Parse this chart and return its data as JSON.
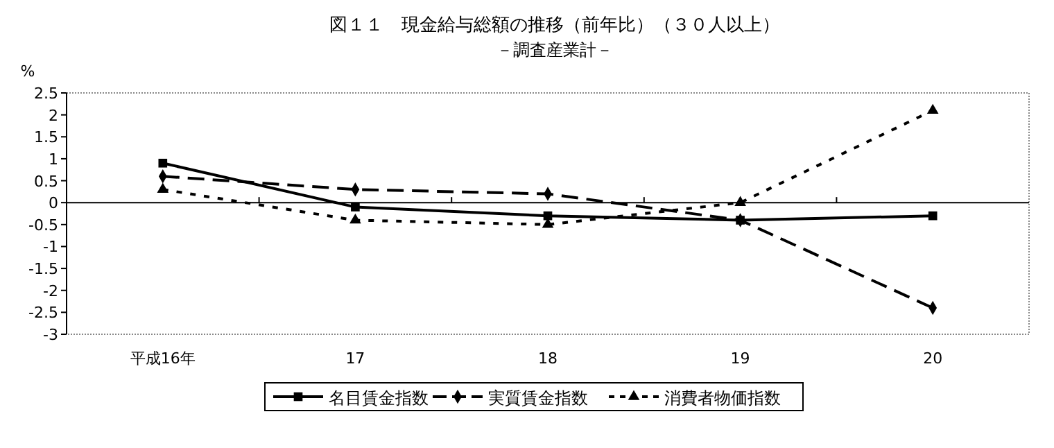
{
  "chart_data": {
    "type": "line",
    "title": "図１１　現金給与総額の推移（前年比）（３０人以上）",
    "subtitle": "－調査産業計－",
    "ylabel": "%",
    "categories": [
      "平成16年",
      "17",
      "18",
      "19",
      "20"
    ],
    "series": [
      {
        "name": "名目賃金指数",
        "color": "#000000",
        "values": [
          0.9,
          -0.1,
          -0.3,
          -0.4,
          -0.3
        ],
        "marker": "square",
        "line_style": "solid"
      },
      {
        "name": "実質賃金指数",
        "color": "#000000",
        "values": [
          0.6,
          0.3,
          0.2,
          -0.4,
          -2.4
        ],
        "marker": "diamond",
        "line_style": "dashed"
      },
      {
        "name": "消費者物価指数",
        "color": "#000000",
        "values": [
          0.3,
          -0.4,
          -0.5,
          0.0,
          2.1
        ],
        "marker": "triangle",
        "line_style": "dotted"
      }
    ],
    "ylim": [
      -3,
      2.5
    ],
    "yticks": [
      2.5,
      2,
      1.5,
      1,
      0.5,
      0,
      -0.5,
      -1,
      -1.5,
      -2,
      -2.5,
      -3
    ],
    "legend": "bottom"
  }
}
